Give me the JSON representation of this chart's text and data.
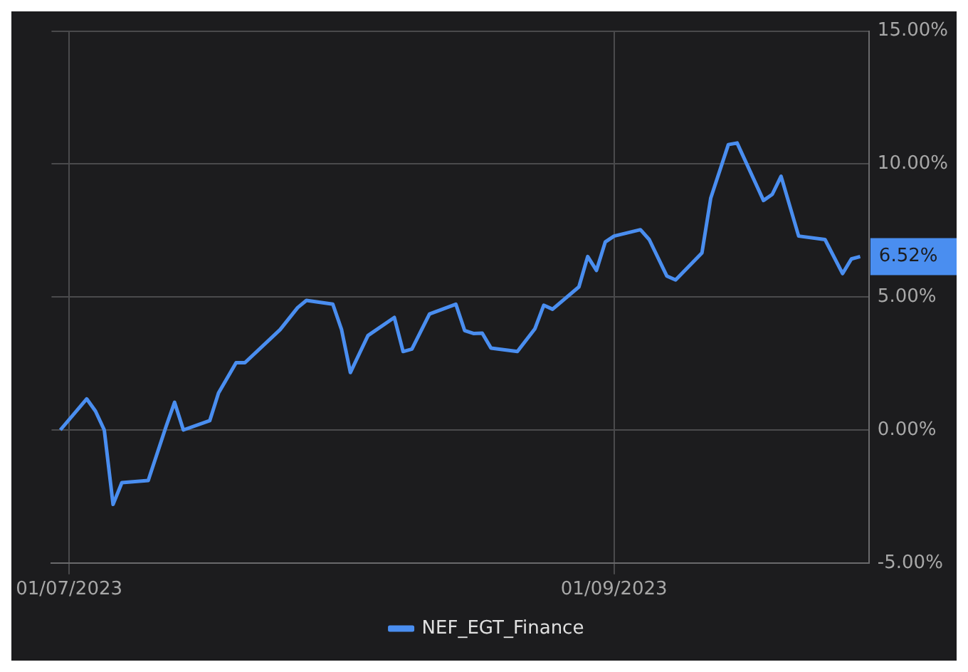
{
  "chart_data": {
    "type": "line",
    "x": [
      "2023-06-30",
      "2023-07-03",
      "2023-07-04",
      "2023-07-05",
      "2023-07-06",
      "2023-07-07",
      "2023-07-10",
      "2023-07-12",
      "2023-07-13",
      "2023-07-14",
      "2023-07-17",
      "2023-07-18",
      "2023-07-20",
      "2023-07-21",
      "2023-07-25",
      "2023-07-27",
      "2023-07-28",
      "2023-07-31",
      "2023-08-01",
      "2023-08-02",
      "2023-08-04",
      "2023-08-07",
      "2023-08-08",
      "2023-08-09",
      "2023-08-11",
      "2023-08-14",
      "2023-08-15",
      "2023-08-16",
      "2023-08-17",
      "2023-08-18",
      "2023-08-21",
      "2023-08-23",
      "2023-08-24",
      "2023-08-25",
      "2023-08-28",
      "2023-08-29",
      "2023-08-30",
      "2023-08-31",
      "2023-09-01",
      "2023-09-04",
      "2023-09-05",
      "2023-09-07",
      "2023-09-08",
      "2023-09-11",
      "2023-09-12",
      "2023-09-14",
      "2023-09-15",
      "2023-09-18",
      "2023-09-19",
      "2023-09-20",
      "2023-09-22",
      "2023-09-25",
      "2023-09-27",
      "2023-09-28",
      "2023-09-29"
    ],
    "series": [
      {
        "name": "NEF_EGT_Finance",
        "color": "#4a8ef0",
        "values": [
          0.0,
          1.17,
          0.71,
          0.0,
          -2.8,
          -1.98,
          -1.9,
          0.1,
          1.04,
          0.0,
          0.35,
          1.39,
          2.53,
          2.53,
          3.77,
          4.6,
          4.87,
          4.73,
          3.77,
          2.16,
          3.55,
          4.23,
          2.95,
          3.04,
          4.36,
          4.73,
          3.74,
          3.63,
          3.64,
          3.08,
          2.95,
          3.81,
          4.69,
          4.54,
          5.38,
          6.52,
          6.0,
          7.07,
          7.29,
          7.53,
          7.16,
          5.79,
          5.64,
          6.66,
          8.72,
          10.73,
          10.79,
          8.63,
          8.86,
          9.54,
          7.29,
          7.16,
          5.88,
          6.43,
          6.52
        ]
      }
    ],
    "xlim": [
      "2023-06-29",
      "2023-09-30"
    ],
    "xticks": [
      {
        "value": "2023-07-01",
        "label": "01/07/2023"
      },
      {
        "value": "2023-09-01",
        "label": "01/09/2023"
      }
    ],
    "ylim": [
      -5,
      15
    ],
    "yticks": [
      {
        "value": -5,
        "label": "-5.00%"
      },
      {
        "value": 0,
        "label": "0.00%"
      },
      {
        "value": 5,
        "label": "5.00%"
      },
      {
        "value": 10,
        "label": "10.00%"
      },
      {
        "value": 15,
        "label": "15.00%"
      }
    ],
    "annotations": [
      "6.52%"
    ],
    "grid": true,
    "legend": "bottom",
    "marker": "none",
    "line_style": "solid"
  }
}
